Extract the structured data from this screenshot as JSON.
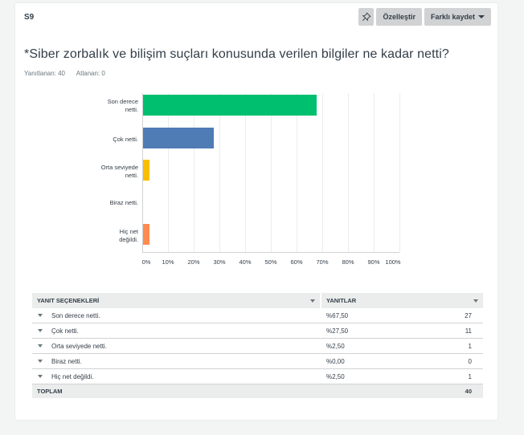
{
  "question": {
    "id": "S9",
    "title": "*Siber zorbalık ve bilişim suçları konusunda verilen bilgiler ne kadar netti?",
    "answered_label": "Yanıtlanan: 40",
    "skipped_label": "Atlanan: 0"
  },
  "toolbar": {
    "pin_icon": "pin-icon",
    "customize_label": "Özelleştir",
    "save_as_label": "Farklı kaydet"
  },
  "chart_data": {
    "type": "bar",
    "orientation": "horizontal",
    "categories": [
      "Son derece netti.",
      "Çok netti.",
      "Orta seviyede netti.",
      "Biraz netti.",
      "Hiç net değildi."
    ],
    "values": [
      67.5,
      27.5,
      2.5,
      0.0,
      2.5
    ],
    "colors": [
      "#00bf6f",
      "#507cb6",
      "#f9be00",
      "#6bc8cd",
      "#ff8b4f"
    ],
    "xlabel": "",
    "ylabel": "",
    "xlim": [
      0,
      100
    ],
    "x_ticks": [
      "0%",
      "10%",
      "20%",
      "30%",
      "40%",
      "50%",
      "60%",
      "70%",
      "80%",
      "90%",
      "100%"
    ],
    "grid": true,
    "legend": null,
    "y_labels_lines": [
      [
        "Son derece",
        "netti."
      ],
      [
        "Çok netti."
      ],
      [
        "Orta seviyede",
        "netti."
      ],
      [
        "Biraz netti."
      ],
      [
        "Hiç net",
        "değildi."
      ]
    ]
  },
  "table": {
    "headers": {
      "choices": "YANIT SEÇENEKLERİ",
      "responses": "YANITLAR"
    },
    "rows": [
      {
        "label": "Son derece netti.",
        "percent": "%67,50",
        "count": "27"
      },
      {
        "label": "Çok netti.",
        "percent": "%27,50",
        "count": "11"
      },
      {
        "label": "Orta seviyede netti.",
        "percent": "%2,50",
        "count": "1"
      },
      {
        "label": "Biraz netti.",
        "percent": "%0,00",
        "count": "0"
      },
      {
        "label": "Hiç net değildi.",
        "percent": "%2,50",
        "count": "1"
      }
    ],
    "total_label": "TOPLAM",
    "total_count": "40"
  }
}
